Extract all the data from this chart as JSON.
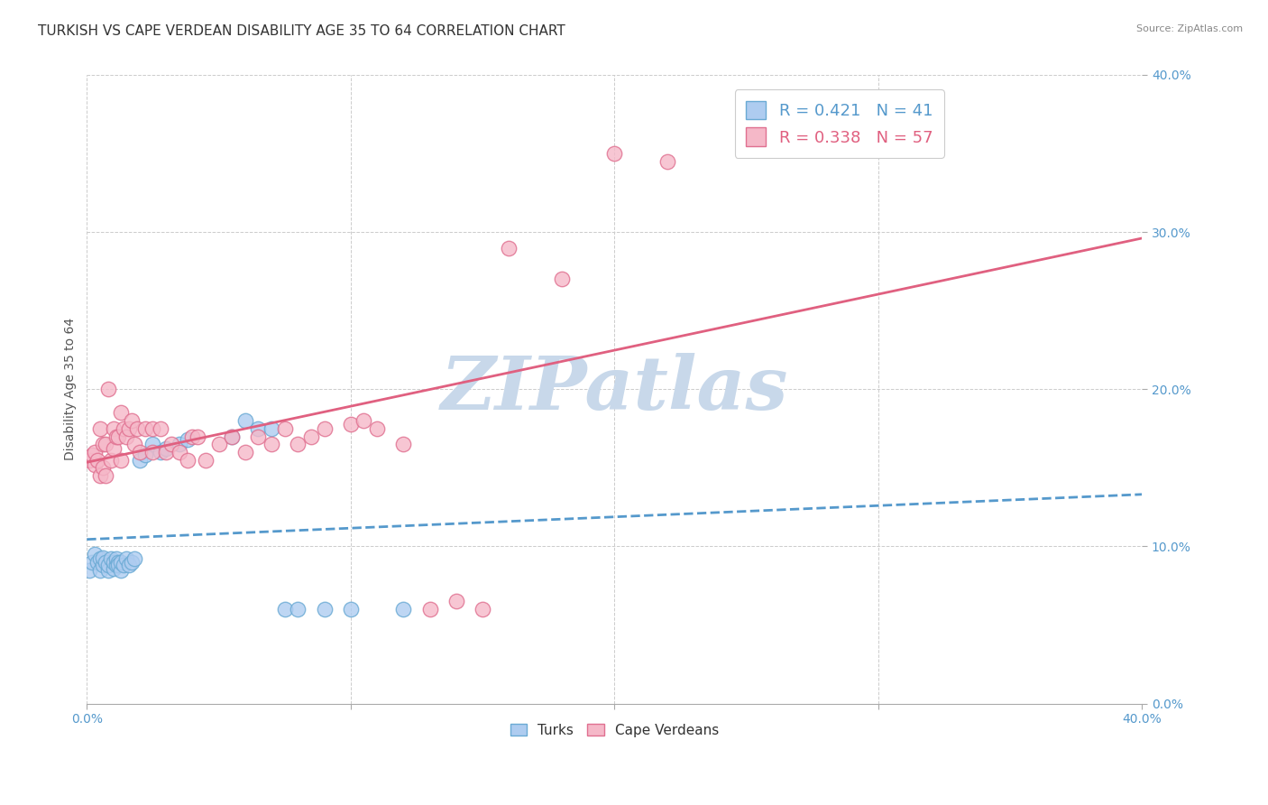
{
  "title": "TURKISH VS CAPE VERDEAN DISABILITY AGE 35 TO 64 CORRELATION CHART",
  "source": "Source: ZipAtlas.com",
  "ylabel": "Disability Age 35 to 64",
  "xmin": 0.0,
  "xmax": 0.4,
  "ymin": 0.0,
  "ymax": 0.4,
  "watermark": "ZIPatlas",
  "turks_R": 0.421,
  "turks_N": 41,
  "cape_verdeans_R": 0.338,
  "cape_verdeans_N": 57,
  "turks_color": "#aeccf0",
  "turks_edge_color": "#6aaad4",
  "turks_line_color": "#5599cc",
  "cape_verdeans_color": "#f5b8c8",
  "cape_verdeans_edge_color": "#e07090",
  "cape_verdeans_line_color": "#e06080",
  "turks_x": [
    0.001,
    0.002,
    0.003,
    0.004,
    0.005,
    0.005,
    0.006,
    0.006,
    0.007,
    0.008,
    0.008,
    0.009,
    0.01,
    0.01,
    0.011,
    0.011,
    0.012,
    0.012,
    0.013,
    0.013,
    0.014,
    0.015,
    0.016,
    0.017,
    0.018,
    0.02,
    0.022,
    0.025,
    0.028,
    0.03,
    0.035,
    0.038,
    0.055,
    0.06,
    0.065,
    0.07,
    0.075,
    0.08,
    0.09,
    0.1,
    0.12
  ],
  "turks_y": [
    0.085,
    0.09,
    0.095,
    0.09,
    0.085,
    0.092,
    0.088,
    0.093,
    0.09,
    0.085,
    0.088,
    0.092,
    0.086,
    0.09,
    0.088,
    0.092,
    0.09,
    0.088,
    0.085,
    0.09,
    0.088,
    0.092,
    0.088,
    0.09,
    0.092,
    0.155,
    0.158,
    0.165,
    0.16,
    0.162,
    0.165,
    0.168,
    0.17,
    0.18,
    0.175,
    0.175,
    0.06,
    0.06,
    0.06,
    0.06,
    0.06
  ],
  "cv_x": [
    0.001,
    0.002,
    0.003,
    0.003,
    0.004,
    0.005,
    0.005,
    0.006,
    0.006,
    0.007,
    0.007,
    0.008,
    0.009,
    0.01,
    0.01,
    0.011,
    0.012,
    0.013,
    0.013,
    0.014,
    0.015,
    0.016,
    0.017,
    0.018,
    0.019,
    0.02,
    0.022,
    0.025,
    0.025,
    0.028,
    0.03,
    0.032,
    0.035,
    0.038,
    0.04,
    0.042,
    0.045,
    0.05,
    0.055,
    0.06,
    0.065,
    0.07,
    0.075,
    0.08,
    0.085,
    0.09,
    0.1,
    0.105,
    0.11,
    0.12,
    0.13,
    0.14,
    0.15,
    0.16,
    0.18,
    0.2,
    0.22
  ],
  "cv_y": [
    0.155,
    0.158,
    0.152,
    0.16,
    0.155,
    0.145,
    0.175,
    0.15,
    0.165,
    0.145,
    0.165,
    0.2,
    0.155,
    0.162,
    0.175,
    0.17,
    0.17,
    0.155,
    0.185,
    0.175,
    0.17,
    0.175,
    0.18,
    0.165,
    0.175,
    0.16,
    0.175,
    0.16,
    0.175,
    0.175,
    0.16,
    0.165,
    0.16,
    0.155,
    0.17,
    0.17,
    0.155,
    0.165,
    0.17,
    0.16,
    0.17,
    0.165,
    0.175,
    0.165,
    0.17,
    0.175,
    0.178,
    0.18,
    0.175,
    0.165,
    0.06,
    0.065,
    0.06,
    0.29,
    0.27,
    0.35,
    0.345
  ],
  "grid_color": "#cccccc",
  "background_color": "#ffffff",
  "title_fontsize": 11,
  "axis_label_fontsize": 10,
  "tick_fontsize": 10,
  "legend_fontsize": 13,
  "watermark_color": "#c8d8ea",
  "watermark_fontsize": 60
}
